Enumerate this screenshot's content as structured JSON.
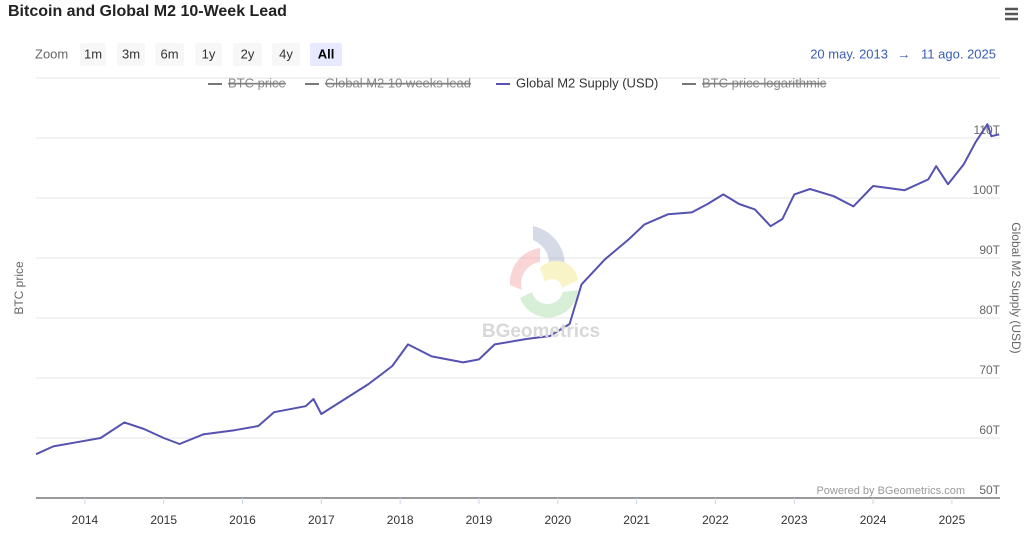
{
  "chart_data": {
    "type": "line",
    "title": "Bitcoin and Global M2 10-Week Lead",
    "zoom_label": "Zoom",
    "zoom_buttons": [
      "1m",
      "3m",
      "6m",
      "1y",
      "2y",
      "4y",
      "All"
    ],
    "zoom_selected": 6,
    "range_from": "20 may. 2013",
    "range_separator": "→",
    "range_to": "11 ago. 2025",
    "y_left_label": "BTC price",
    "y2_label": "Global M2 Supply (USD)",
    "credit": "Powered by BGeometrics.com",
    "watermark": "BGeometrics",
    "grid": true,
    "xlim": [
      2013.38,
      2025.61
    ],
    "xticks": [
      2014,
      2015,
      2016,
      2017,
      2018,
      2019,
      2020,
      2021,
      2022,
      2023,
      2024,
      2025
    ],
    "y2lim": [
      50,
      120
    ],
    "y2ticks": [
      {
        "value": 50,
        "label": "50T"
      },
      {
        "value": 60,
        "label": "60T"
      },
      {
        "value": 70,
        "label": "70T"
      },
      {
        "value": 80,
        "label": "80T"
      },
      {
        "value": 90,
        "label": "90T"
      },
      {
        "value": 100,
        "label": "100T"
      },
      {
        "value": 110,
        "label": "110T"
      }
    ],
    "x": [
      2013.38,
      2013.6,
      2013.9,
      2014.2,
      2014.5,
      2014.75,
      2015.0,
      2015.2,
      2015.5,
      2015.9,
      2016.2,
      2016.4,
      2016.8,
      2016.9,
      2017.0,
      2017.3,
      2017.6,
      2017.9,
      2018.1,
      2018.4,
      2018.8,
      2019.0,
      2019.2,
      2019.6,
      2019.9,
      2020.15,
      2020.3,
      2020.6,
      2020.9,
      2021.1,
      2021.4,
      2021.7,
      2021.9,
      2022.1,
      2022.3,
      2022.5,
      2022.7,
      2022.85,
      2023.0,
      2023.2,
      2023.5,
      2023.75,
      2024.0,
      2024.4,
      2024.7,
      2024.8,
      2024.95,
      2025.15,
      2025.3,
      2025.45,
      2025.5,
      2025.6
    ],
    "series": [
      {
        "name": "BTC price",
        "color": "#555555",
        "visible": false
      },
      {
        "name": "Global M2 10 weeks lead",
        "color": "#555555",
        "visible": false
      },
      {
        "name": "Global M2 Supply (USD)",
        "color": "#5552b0",
        "visible": true,
        "axis": "y2",
        "values": [
          57.3,
          58.6,
          59.3,
          60.0,
          62.6,
          61.5,
          60.0,
          59.0,
          60.6,
          61.3,
          62.0,
          64.3,
          65.3,
          66.5,
          64.0,
          66.5,
          69.0,
          72.0,
          75.6,
          73.6,
          72.6,
          73.1,
          75.6,
          76.5,
          77.0,
          79.0,
          85.6,
          89.8,
          93.1,
          95.6,
          97.3,
          97.6,
          99.0,
          100.6,
          99.0,
          98.1,
          95.3,
          96.5,
          100.6,
          101.5,
          100.3,
          98.6,
          102.0,
          101.3,
          103.1,
          105.3,
          102.3,
          105.6,
          109.3,
          112.3,
          110.3,
          110.6
        ]
      },
      {
        "name": "BTC price logarithmic",
        "color": "#555555",
        "visible": false
      }
    ]
  }
}
